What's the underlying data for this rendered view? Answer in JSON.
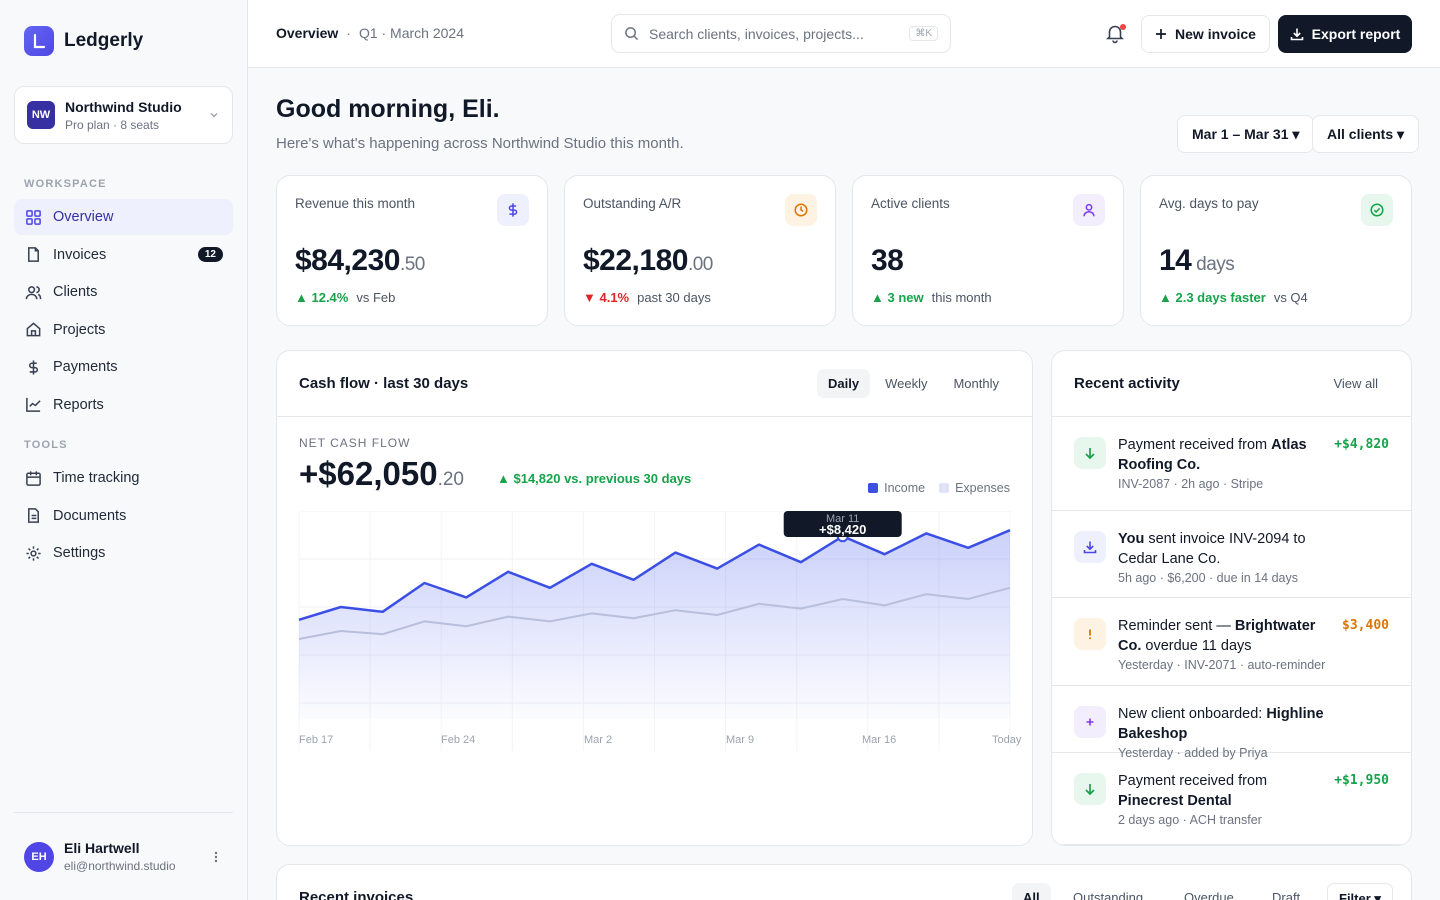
{
  "app": {
    "name": "Ledgerly"
  },
  "workspace": {
    "initials": "NW",
    "name": "Northwind Studio",
    "plan": "Pro plan · 8 seats"
  },
  "sidebar": {
    "workspace_label": "WORKSPACE",
    "tools_label": "TOOLS",
    "workspace_items": [
      {
        "label": "Overview",
        "icon": "grid-icon",
        "active": true
      },
      {
        "label": "Invoices",
        "icon": "file-icon",
        "badge": "12"
      },
      {
        "label": "Clients",
        "icon": "users-icon"
      },
      {
        "label": "Projects",
        "icon": "home-icon"
      },
      {
        "label": "Payments",
        "icon": "dollar-icon"
      },
      {
        "label": "Reports",
        "icon": "chart-icon"
      }
    ],
    "tool_items": [
      {
        "label": "Time tracking",
        "icon": "calendar-icon"
      },
      {
        "label": "Documents",
        "icon": "document-icon"
      },
      {
        "label": "Settings",
        "icon": "gear-icon"
      }
    ]
  },
  "user": {
    "initials": "EH",
    "name": "Eli Hartwell",
    "email": "eli@northwind.studio"
  },
  "topbar": {
    "crumb_main": "Overview",
    "crumb_sep": "·",
    "crumb_sub": "Q1 · March 2024",
    "search_placeholder": "Search clients, invoices, projects...",
    "search_shortcut": "⌘K",
    "new_invoice": "New invoice",
    "export_report": "Export report"
  },
  "header": {
    "greeting": "Good morning, Eli.",
    "subtitle": "Here's what's happening across Northwind Studio this month.",
    "date_range": "Mar 1 – Mar 31 ▾",
    "client_filter": "All clients ▾"
  },
  "kpis": [
    {
      "label": "Revenue this month",
      "value": "$84,230",
      "cents": ".50",
      "delta": "▲ 12.4%",
      "delta_dir": "up",
      "compare": "vs Feb",
      "icon": "dollar-icon",
      "icon_bg": "#eef0fd",
      "icon_color": "#4f46e5"
    },
    {
      "label": "Outstanding A/R",
      "value": "$22,180",
      "cents": ".00",
      "delta": "▼ 4.1%",
      "delta_dir": "down",
      "compare": "past 30 days",
      "icon": "clock-icon",
      "icon_bg": "#fef3e2",
      "icon_color": "#d97706"
    },
    {
      "label": "Active clients",
      "value": "38",
      "cents": "",
      "delta": "▲ 3 new",
      "delta_dir": "up",
      "compare": "this month",
      "icon": "user-icon",
      "icon_bg": "#f3eefe",
      "icon_color": "#7c3aed"
    },
    {
      "label": "Avg. days to pay",
      "value": "14",
      "cents": " days",
      "delta": "▲ 2.3 days faster",
      "delta_dir": "up",
      "compare": "vs Q4",
      "icon": "check-circle-icon",
      "icon_bg": "#e8f7ee",
      "icon_color": "#16a34a"
    }
  ],
  "cashflow": {
    "title": "Cash flow · last 30 days",
    "tabs": [
      "Daily",
      "Weekly",
      "Monthly"
    ],
    "active_tab": "Daily",
    "net_label": "NET CASH FLOW",
    "net_value": "+$62,050",
    "net_cents": ".20",
    "net_delta": "▲ $14,820 vs. previous 30 days",
    "legend_income": "Income",
    "legend_expenses": "Expenses",
    "tooltip_date": "Mar 11",
    "tooltip_value": "+$8,420"
  },
  "chart_data": {
    "type": "area",
    "x_tick_labels": [
      "Feb 17",
      "Feb 24",
      "Mar 2",
      "Mar 9",
      "Mar 16",
      "Today"
    ],
    "series": [
      {
        "name": "Income",
        "color": "#3b4fe4",
        "values": [
          3200,
          4000,
          3700,
          5500,
          4600,
          6200,
          5200,
          6700,
          5700,
          7400,
          6400,
          7900,
          6800,
          8420,
          7300,
          8600,
          7700,
          8800
        ]
      },
      {
        "name": "Expenses",
        "color": "#b8bfdc",
        "values": [
          2000,
          2500,
          2300,
          3100,
          2800,
          3400,
          3100,
          3600,
          3300,
          3800,
          3500,
          4200,
          3900,
          4500,
          4100,
          4800,
          4500,
          5200
        ]
      }
    ],
    "highlight": {
      "label": "Mar 11",
      "value": "+$8,420",
      "series": "Income"
    },
    "ylim": [
      -2000,
      10000
    ],
    "grid": true
  },
  "activity": {
    "title": "Recent activity",
    "view_all": "View all",
    "items": [
      {
        "icon": "arrow-down-icon",
        "icon_bg": "#e8f7ee",
        "icon_color": "#16a34a",
        "pre": "Payment received from ",
        "bold": "Atlas Roofing Co.",
        "post": "",
        "meta": "INV-2087 · 2h ago · Stripe",
        "amount": "+$4,820",
        "amount_color": "#16a34a"
      },
      {
        "icon": "download-icon",
        "icon_bg": "#eef0fd",
        "icon_color": "#4f46e5",
        "pre": "",
        "bold": "You",
        "post": " sent invoice INV-2094 to Cedar Lane Co.",
        "meta": "5h ago · $6,200 · due in 14 days",
        "amount": "",
        "amount_color": "#16a34a"
      },
      {
        "icon": "alert-icon",
        "icon_bg": "#fef3e2",
        "icon_color": "#d97706",
        "pre": "Reminder sent — ",
        "bold": "Brightwater Co.",
        "post": " overdue 11 days",
        "meta": "Yesterday · INV-2071 · auto-reminder",
        "amount": "$3,400",
        "amount_color": "#d97706"
      },
      {
        "icon": "plus-icon",
        "icon_bg": "#f3eefe",
        "icon_color": "#7c3aed",
        "pre": "New client onboarded: ",
        "bold": "Highline Bakeshop",
        "post": "",
        "meta": "Yesterday · added by Priya",
        "amount": "",
        "amount_color": "#16a34a"
      },
      {
        "icon": "arrow-down-icon",
        "icon_bg": "#e8f7ee",
        "icon_color": "#16a34a",
        "pre": "Payment received from ",
        "bold": "Pinecrest Dental",
        "post": "",
        "meta": "2 days ago · ACH transfer",
        "amount": "+$1,950",
        "amount_color": "#16a34a"
      }
    ]
  },
  "invoices": {
    "title": "Recent invoices",
    "tabs": [
      "All",
      "Outstanding",
      "Overdue",
      "Draft"
    ],
    "active_tab": "All",
    "filter": "Filter ▾"
  }
}
